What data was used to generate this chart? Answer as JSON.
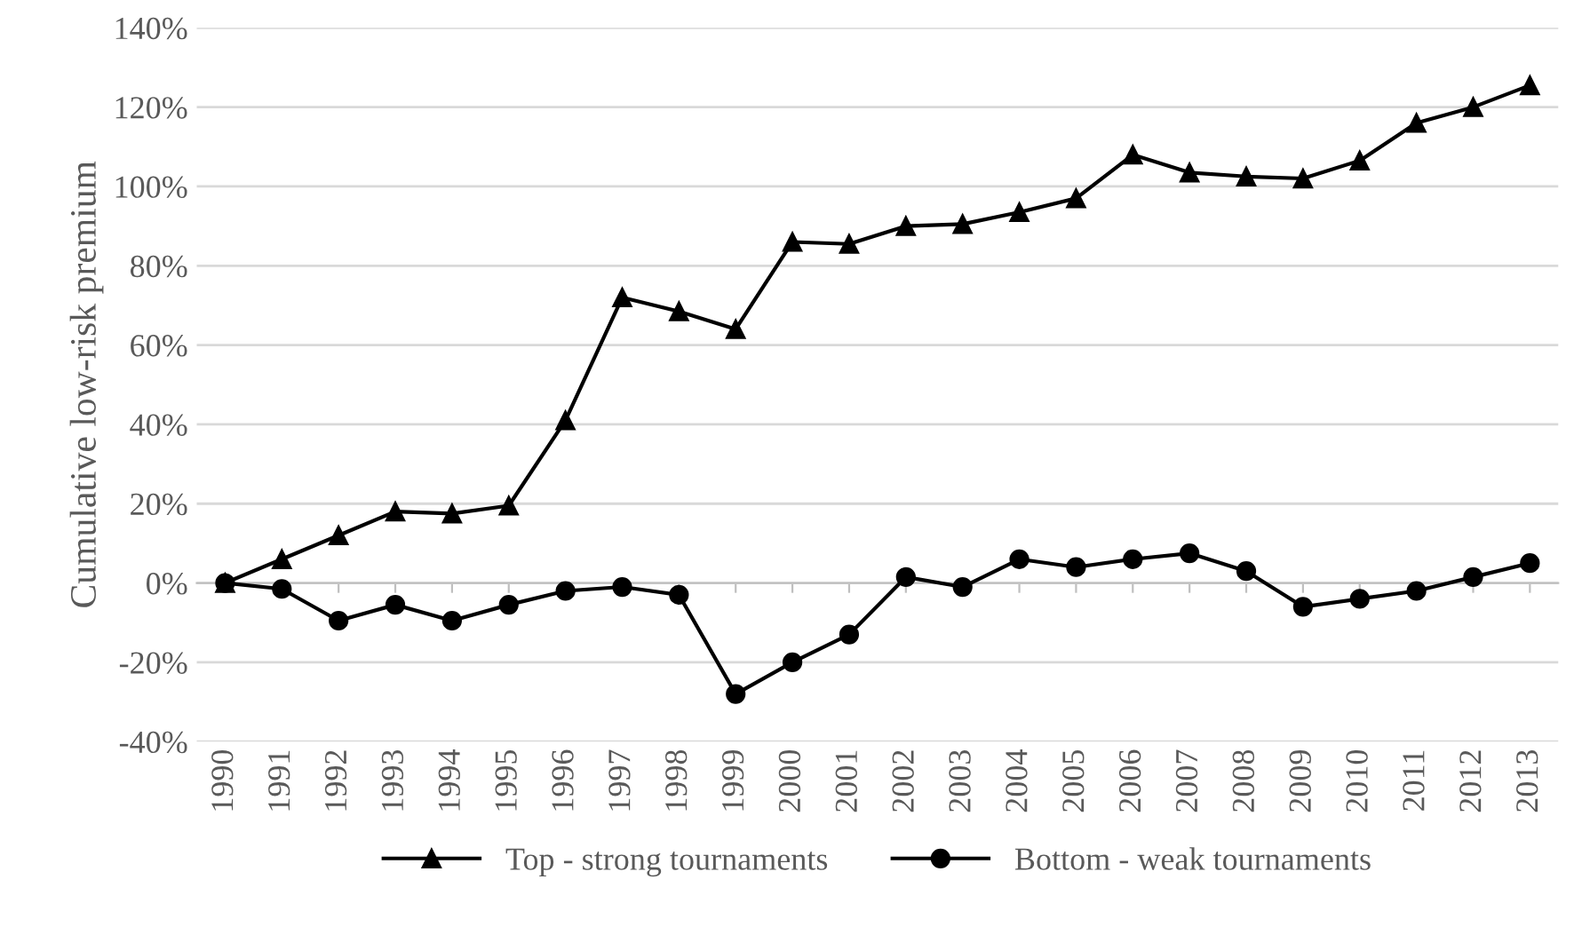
{
  "chart_data": {
    "type": "line",
    "ylabel": "Cumulative low-risk premium",
    "categories": [
      "1990",
      "1991",
      "1992",
      "1993",
      "1994",
      "1995",
      "1996",
      "1997",
      "1998",
      "1999",
      "2000",
      "2001",
      "2002",
      "2003",
      "2004",
      "2005",
      "2006",
      "2007",
      "2008",
      "2009",
      "2010",
      "2011",
      "2012",
      "2013"
    ],
    "series": [
      {
        "name": "Top - strong tournaments",
        "color": "#000000",
        "marker": "triangle",
        "values": [
          0,
          6,
          12,
          18,
          17.5,
          19.5,
          41,
          72,
          68.5,
          64,
          86,
          85.5,
          90,
          90.5,
          93.5,
          97,
          108,
          103.5,
          102.5,
          102,
          106.5,
          116,
          120,
          125.5
        ]
      },
      {
        "name": "Bottom - weak tournaments",
        "color": "#000000",
        "marker": "circle",
        "values": [
          0,
          -1.5,
          -9.5,
          -5.5,
          -9.5,
          -5.5,
          -2,
          -1,
          -3,
          -28,
          -20,
          -13,
          1.5,
          -1,
          6,
          4,
          6,
          7.5,
          3,
          -6,
          -4,
          -2,
          1.5,
          5
        ]
      }
    ],
    "ylim": [
      -40,
      140
    ],
    "yticks": [
      {
        "value": -40,
        "label": "-40%"
      },
      {
        "value": -20,
        "label": "-20%"
      },
      {
        "value": 0,
        "label": "0%"
      },
      {
        "value": 20,
        "label": "20%"
      },
      {
        "value": 40,
        "label": "40%"
      },
      {
        "value": 60,
        "label": "60%"
      },
      {
        "value": 80,
        "label": "80%"
      },
      {
        "value": 100,
        "label": "100%"
      },
      {
        "value": 120,
        "label": "120%"
      },
      {
        "value": 140,
        "label": "140%"
      }
    ],
    "grid": "y",
    "legend": "bottom",
    "line_style": "solid"
  }
}
